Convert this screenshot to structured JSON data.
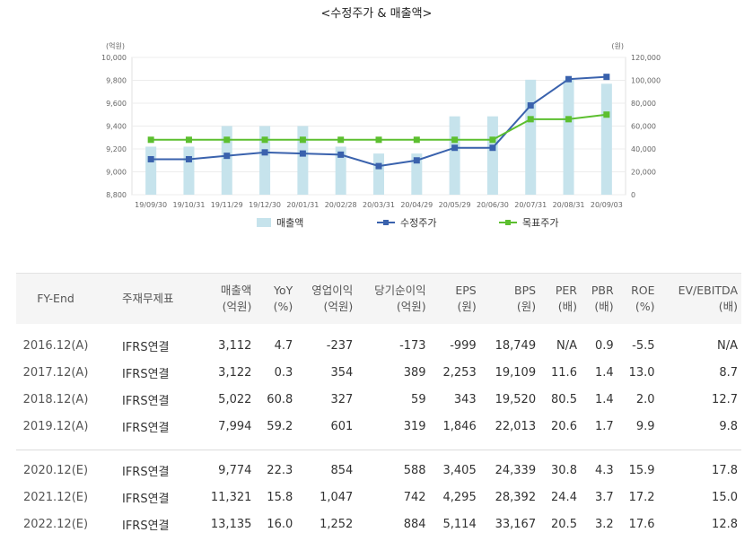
{
  "chart_data": {
    "type": "bar+line",
    "title": "<수정주가 & 매출액>",
    "left_axis_unit": "(억원)",
    "right_axis_unit": "(원)",
    "left_axis": {
      "min": 8800,
      "max": 10000,
      "ticks": [
        "10,000",
        "9,800",
        "9,600",
        "9,400",
        "9,200",
        "9,000",
        "8,800"
      ]
    },
    "right_axis": {
      "min": 0,
      "max": 120000,
      "ticks": [
        "120,000",
        "100,000",
        "80,000",
        "60,000",
        "40,000",
        "20,000",
        "0"
      ]
    },
    "categories": [
      "19/09/30",
      "19/10/31",
      "19/11/29",
      "19/12/30",
      "20/01/31",
      "20/02/28",
      "20/03/31",
      "20/04/29",
      "20/05/29",
      "20/06/30",
      "20/07/31",
      "20/08/31",
      "20/09/03"
    ],
    "series": [
      {
        "name": "매출액",
        "kind": "bar",
        "axis": "left",
        "color": "#c6e3ec",
        "values": [
          9220,
          9220,
          9400,
          9400,
          9400,
          9220,
          9160,
          9160,
          9485,
          9485,
          9805,
          9805,
          9770
        ]
      },
      {
        "name": "수정주가",
        "kind": "line",
        "axis": "right",
        "color": "#3a62ad",
        "values": [
          31000,
          31000,
          34000,
          37000,
          36000,
          35000,
          25000,
          30000,
          41000,
          41000,
          78000,
          101000,
          103000
        ]
      },
      {
        "name": "목표주가",
        "kind": "line",
        "axis": "right",
        "color": "#5cbf2f",
        "values": [
          48000,
          48000,
          48000,
          48000,
          48000,
          48000,
          48000,
          48000,
          48000,
          48000,
          66000,
          66000,
          70000
        ]
      }
    ],
    "grid": true,
    "legend_position": "bottom"
  },
  "table": {
    "headers": [
      [
        "FY-End",
        ""
      ],
      [
        "주재무제표",
        ""
      ],
      [
        "매출액",
        "(억원)"
      ],
      [
        "YoY",
        "(%)"
      ],
      [
        "영업이익",
        "(억원)"
      ],
      [
        "당기순이익",
        "(억원)"
      ],
      [
        "EPS",
        "(원)"
      ],
      [
        "BPS",
        "(원)"
      ],
      [
        "PER",
        "(배)"
      ],
      [
        "PBR",
        "(배)"
      ],
      [
        "ROE",
        "(%)"
      ],
      [
        "EV/EBITDA",
        "(배)"
      ]
    ],
    "actual_rows": [
      [
        "2016.12(A)",
        "IFRS연결",
        "3,112",
        "4.7",
        "-237",
        "-173",
        "-999",
        "18,749",
        "N/A",
        "0.9",
        "-5.5",
        "N/A"
      ],
      [
        "2017.12(A)",
        "IFRS연결",
        "3,122",
        "0.3",
        "354",
        "389",
        "2,253",
        "19,109",
        "11.6",
        "1.4",
        "13.0",
        "8.7"
      ],
      [
        "2018.12(A)",
        "IFRS연결",
        "5,022",
        "60.8",
        "327",
        "59",
        "343",
        "19,520",
        "80.5",
        "1.4",
        "2.0",
        "12.7"
      ],
      [
        "2019.12(A)",
        "IFRS연결",
        "7,994",
        "59.2",
        "601",
        "319",
        "1,846",
        "22,013",
        "20.6",
        "1.7",
        "9.9",
        "9.8"
      ]
    ],
    "estimate_rows": [
      [
        "2020.12(E)",
        "IFRS연결",
        "9,774",
        "22.3",
        "854",
        "588",
        "3,405",
        "24,339",
        "30.8",
        "4.3",
        "15.9",
        "17.8"
      ],
      [
        "2021.12(E)",
        "IFRS연결",
        "11,321",
        "15.8",
        "1,047",
        "742",
        "4,295",
        "28,392",
        "24.4",
        "3.7",
        "17.2",
        "15.0"
      ],
      [
        "2022.12(E)",
        "IFRS연결",
        "13,135",
        "16.0",
        "1,252",
        "884",
        "5,114",
        "33,167",
        "20.5",
        "3.2",
        "17.6",
        "12.8"
      ]
    ]
  }
}
